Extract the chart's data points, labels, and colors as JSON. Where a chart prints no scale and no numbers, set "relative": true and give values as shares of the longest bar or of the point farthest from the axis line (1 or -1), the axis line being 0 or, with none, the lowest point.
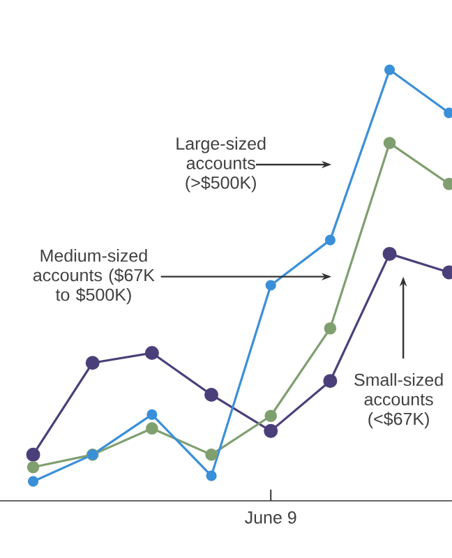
{
  "chart_data": {
    "type": "line",
    "relative": true,
    "categories": [
      null,
      null,
      null,
      null,
      null,
      null,
      null,
      null
    ],
    "series": [
      {
        "color": "#3a8fd9",
        "values": [
          0.045,
          0.107,
          0.2,
          0.058,
          0.5,
          0.605,
          1,
          0.9
        ]
      },
      {
        "color": "#7f9f6f",
        "values": [
          0.078,
          0.107,
          0.168,
          0.107,
          0.197,
          0.4,
          0.83,
          0.735
        ]
      },
      {
        "color": "#4b3f7a",
        "values": [
          0.107,
          0.32,
          0.343,
          0.246,
          0.162,
          0.278,
          0.573,
          0.53
        ]
      }
    ],
    "annotations": [
      "Large-sized accounts (>$500K)",
      "Medium-sized accounts ($67K to $500K)",
      "Small-sized accounts (<$67K)",
      "June 9"
    ],
    "marker": "circle",
    "line_style": "solid",
    "grid": false
  }
}
